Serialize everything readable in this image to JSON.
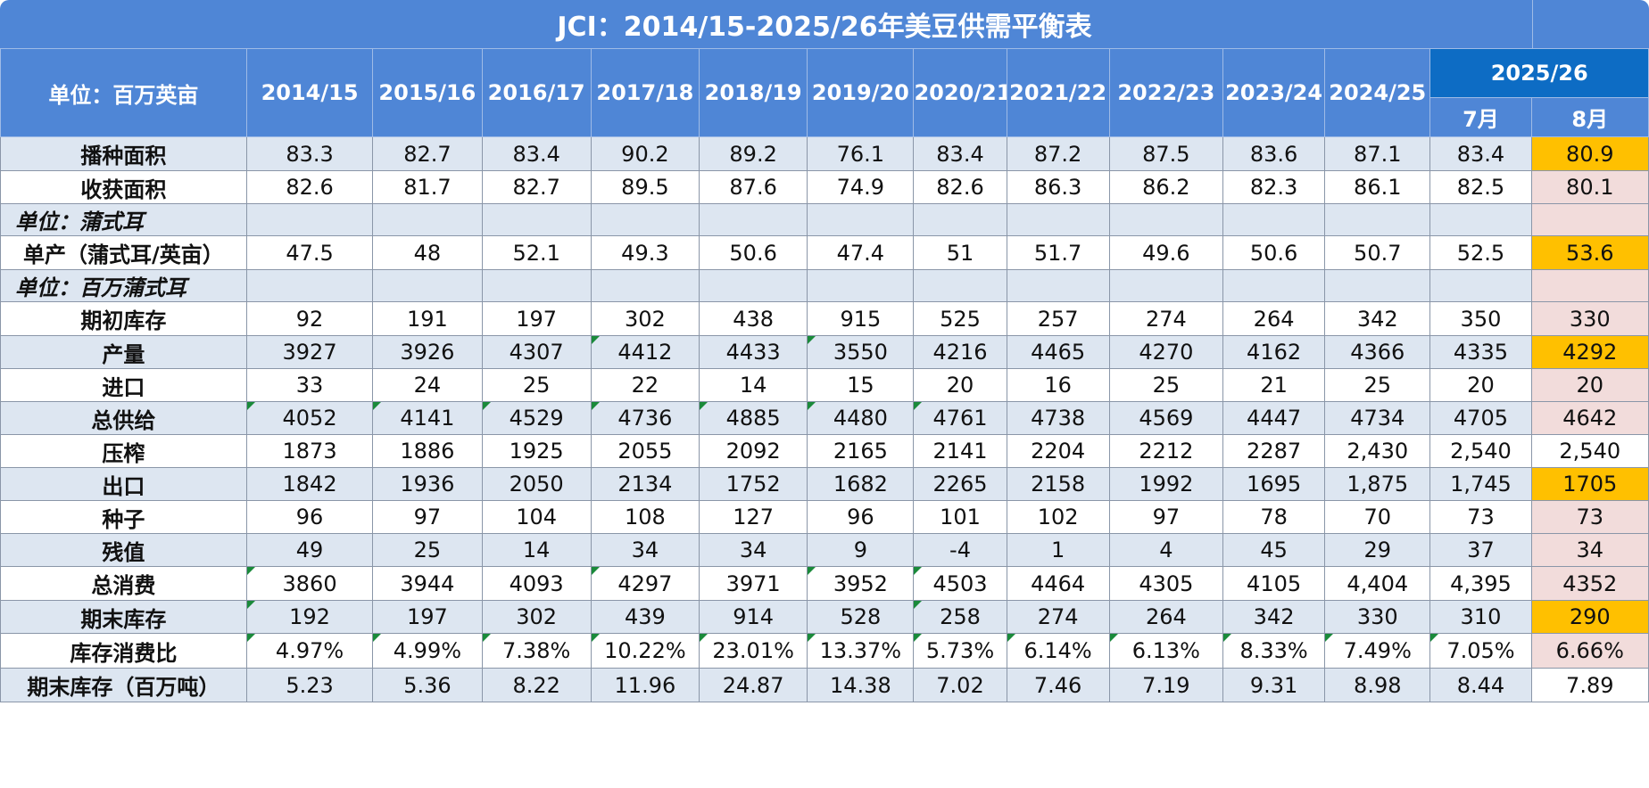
{
  "title": "JCI：2014/15-2025/26年美豆供需平衡表",
  "header": {
    "unit": "单位：百万英亩",
    "years": [
      "2014/15",
      "2015/16",
      "2016/17",
      "2017/18",
      "2018/19",
      "2019/20",
      "2020/21",
      "2021/22",
      "2022/23",
      "2023/24",
      "2024/25"
    ],
    "group": "2025/26",
    "months": [
      "7月",
      "8月"
    ]
  },
  "rows": [
    {
      "label": "播种面积",
      "values": [
        "83.3",
        "82.7",
        "83.4",
        "90.2",
        "89.2",
        "76.1",
        "83.4",
        "87.2",
        "87.5",
        "83.6",
        "87.1",
        "83.4",
        "80.9"
      ]
    },
    {
      "label": "收获面积",
      "values": [
        "82.6",
        "81.7",
        "82.7",
        "89.5",
        "87.6",
        "74.9",
        "82.6",
        "86.3",
        "86.2",
        "82.3",
        "86.1",
        "82.5",
        "80.1"
      ]
    },
    {
      "label": "单位：蒲式耳",
      "sub": true
    },
    {
      "label": "单产（蒲式耳/英亩）",
      "values": [
        "47.5",
        "48",
        "52.1",
        "49.3",
        "50.6",
        "47.4",
        "51",
        "51.7",
        "49.6",
        "50.6",
        "50.7",
        "52.5",
        "53.6"
      ]
    },
    {
      "label": "单位：百万蒲式耳",
      "sub": true
    },
    {
      "label": "期初库存",
      "values": [
        "92",
        "191",
        "197",
        "302",
        "438",
        "915",
        "525",
        "257",
        "274",
        "264",
        "342",
        "350",
        "330"
      ]
    },
    {
      "label": "产量",
      "values": [
        "3927",
        "3926",
        "4307",
        "4412",
        "4433",
        "3550",
        "4216",
        "4465",
        "4270",
        "4162",
        "4366",
        "4335",
        "4292"
      ]
    },
    {
      "label": "进口",
      "values": [
        "33",
        "24",
        "25",
        "22",
        "14",
        "15",
        "20",
        "16",
        "25",
        "21",
        "25",
        "20",
        "20"
      ]
    },
    {
      "label": "总供给",
      "values": [
        "4052",
        "4141",
        "4529",
        "4736",
        "4885",
        "4480",
        "4761",
        "4738",
        "4569",
        "4447",
        "4734",
        "4705",
        "4642"
      ]
    },
    {
      "label": "压榨",
      "values": [
        "1873",
        "1886",
        "1925",
        "2055",
        "2092",
        "2165",
        "2141",
        "2204",
        "2212",
        "2287",
        "2,430",
        "2,540",
        "2,540"
      ]
    },
    {
      "label": "出口",
      "values": [
        "1842",
        "1936",
        "2050",
        "2134",
        "1752",
        "1682",
        "2265",
        "2158",
        "1992",
        "1695",
        "1,875",
        "1,745",
        "1705"
      ]
    },
    {
      "label": "种子",
      "values": [
        "96",
        "97",
        "104",
        "108",
        "127",
        "96",
        "101",
        "102",
        "97",
        "78",
        "70",
        "73",
        "73"
      ]
    },
    {
      "label": "残值",
      "values": [
        "49",
        "25",
        "14",
        "34",
        "34",
        "9",
        "-4",
        "1",
        "4",
        "45",
        "29",
        "37",
        "34"
      ]
    },
    {
      "label": "总消费",
      "values": [
        "3860",
        "3944",
        "4093",
        "4297",
        "3971",
        "3952",
        "4503",
        "4464",
        "4305",
        "4105",
        "4,404",
        "4,395",
        "4352"
      ]
    },
    {
      "label": "期末库存",
      "values": [
        "192",
        "197",
        "302",
        "439",
        "914",
        "528",
        "258",
        "274",
        "264",
        "342",
        "330",
        "310",
        "290"
      ]
    },
    {
      "label": "库存消费比",
      "values": [
        "4.97%",
        "4.99%",
        "7.38%",
        "10.22%",
        "23.01%",
        "13.37%",
        "5.73%",
        "6.14%",
        "6.13%",
        "8.33%",
        "7.49%",
        "7.05%",
        "6.66%"
      ]
    },
    {
      "label": "期末库存（百万吨）",
      "values": [
        "5.23",
        "5.36",
        "8.22",
        "11.96",
        "24.87",
        "14.38",
        "7.02",
        "7.46",
        "7.19",
        "9.31",
        "8.98",
        "8.44",
        "7.89"
      ]
    }
  ],
  "colors": {
    "header": "#4f86d6",
    "header_dark": "#0d6cc4",
    "row_shade": "#dde6f1",
    "highlight_orange": "#ffc000",
    "highlight_pink": "#f2dcdb",
    "corner_marker": "#1a8a3a"
  }
}
